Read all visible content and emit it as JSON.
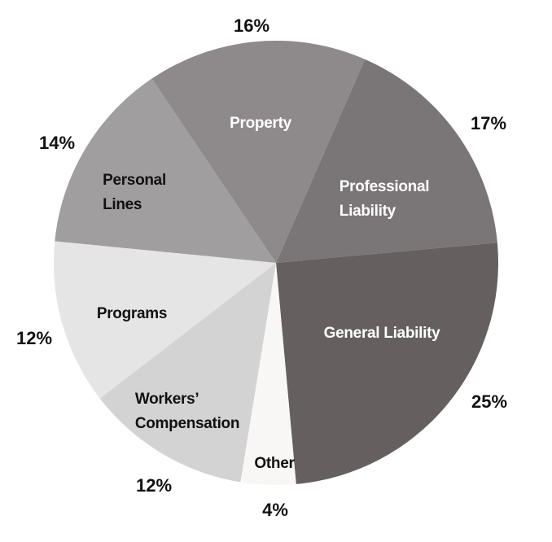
{
  "chart_data": {
    "type": "pie",
    "categories": [
      "Property",
      "Professional\nLiability",
      "General Liability",
      "Other",
      "Workers’\nCompensation",
      "Programs",
      "Personal\nLines"
    ],
    "values": [
      16,
      17,
      25,
      4,
      12,
      12,
      14
    ],
    "value_labels": [
      "16%",
      "17%",
      "25%",
      "4%",
      "12%",
      "12%",
      "14%"
    ],
    "colors": [
      "#8e8a8b",
      "#7a7576",
      "#655f60",
      "#f8f7f5",
      "#d4d3d4",
      "#e6e5e6",
      "#a09e9e"
    ]
  }
}
